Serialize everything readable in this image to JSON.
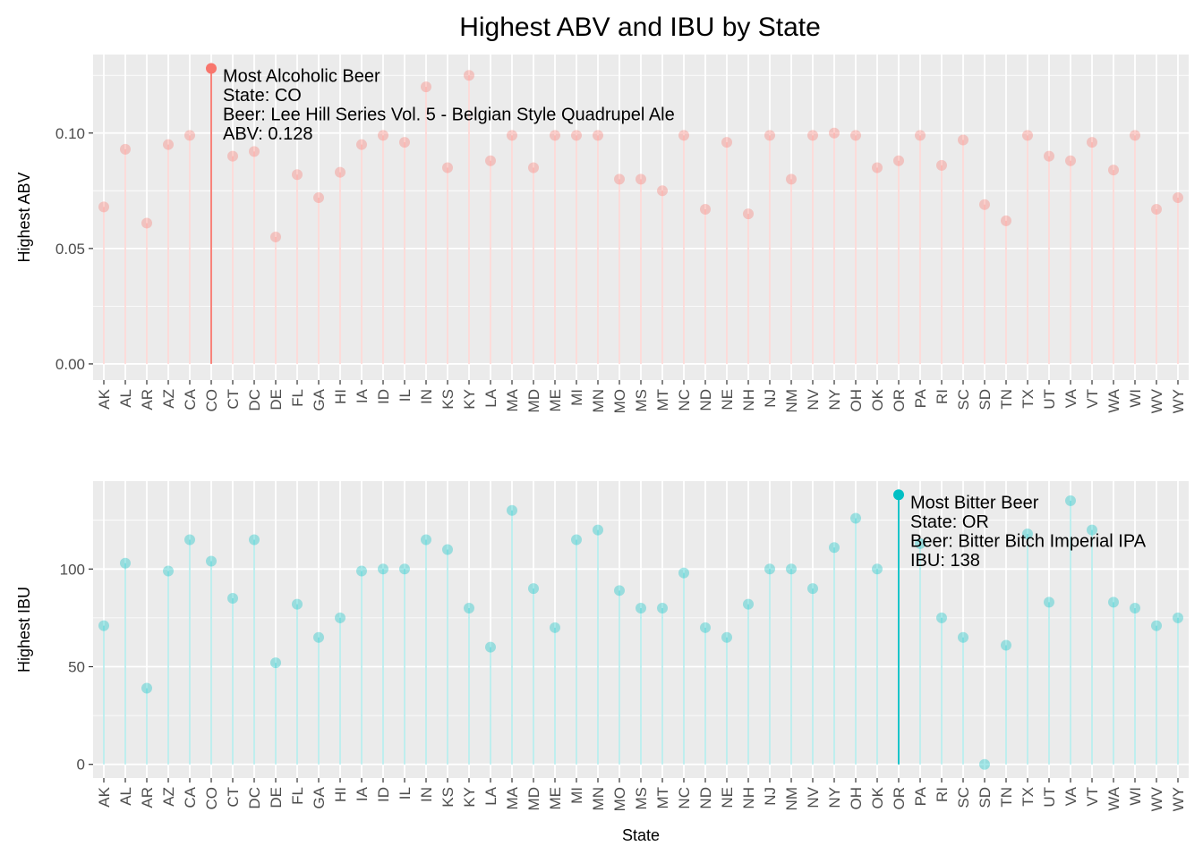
{
  "title": "Highest ABV and IBU by State",
  "chart_data": [
    {
      "type": "lollipop",
      "xlabel": "",
      "ylabel": "Highest ABV",
      "ylim": [
        -0.007,
        0.134
      ],
      "yticks": [
        0.0,
        0.05,
        0.1
      ],
      "ytick_labels": [
        "0.00",
        "0.05",
        "0.10"
      ],
      "grid": true,
      "colors": {
        "point": "#F8766D",
        "panel": "#EBEBEB",
        "grid": "#FFFFFF"
      },
      "categories": [
        "AK",
        "AL",
        "AR",
        "AZ",
        "CA",
        "CO",
        "CT",
        "DC",
        "DE",
        "FL",
        "GA",
        "HI",
        "IA",
        "ID",
        "IL",
        "IN",
        "KS",
        "KY",
        "LA",
        "MA",
        "MD",
        "ME",
        "MI",
        "MN",
        "MO",
        "MS",
        "MT",
        "NC",
        "ND",
        "NE",
        "NH",
        "NJ",
        "NM",
        "NV",
        "NY",
        "OH",
        "OK",
        "OR",
        "PA",
        "RI",
        "SC",
        "SD",
        "TN",
        "TX",
        "UT",
        "VA",
        "VT",
        "WA",
        "WI",
        "WV",
        "WY"
      ],
      "values": [
        0.068,
        0.093,
        0.061,
        0.095,
        0.099,
        0.128,
        0.09,
        0.092,
        0.055,
        0.082,
        0.072,
        0.083,
        0.095,
        0.099,
        0.096,
        0.12,
        0.085,
        0.125,
        0.088,
        0.099,
        0.085,
        0.099,
        0.099,
        0.099,
        0.08,
        0.08,
        0.075,
        0.099,
        0.067,
        0.096,
        0.065,
        0.099,
        0.08,
        0.099,
        0.1,
        0.099,
        0.085,
        0.088,
        0.099,
        0.086,
        0.097,
        0.069,
        0.062,
        0.099,
        0.09,
        0.088,
        0.096,
        0.084,
        0.099,
        0.067,
        0.072
      ],
      "highlight": {
        "category": "CO",
        "lines": [
          "Most Alcoholic Beer",
          "State: CO",
          "Beer: Lee Hill Series Vol. 5 - Belgian Style Quadrupel Ale",
          "ABV: 0.128"
        ]
      }
    },
    {
      "type": "lollipop",
      "xlabel": "State",
      "ylabel": "Highest IBU",
      "ylim": [
        -7,
        145
      ],
      "yticks": [
        0,
        50,
        100
      ],
      "ytick_labels": [
        "0",
        "50",
        "100"
      ],
      "grid": true,
      "colors": {
        "point": "#00BFC4",
        "panel": "#EBEBEB",
        "grid": "#FFFFFF"
      },
      "categories": [
        "AK",
        "AL",
        "AR",
        "AZ",
        "CA",
        "CO",
        "CT",
        "DC",
        "DE",
        "FL",
        "GA",
        "HI",
        "IA",
        "ID",
        "IL",
        "IN",
        "KS",
        "KY",
        "LA",
        "MA",
        "MD",
        "ME",
        "MI",
        "MN",
        "MO",
        "MS",
        "MT",
        "NC",
        "ND",
        "NE",
        "NH",
        "NJ",
        "NM",
        "NV",
        "NY",
        "OH",
        "OK",
        "OR",
        "PA",
        "RI",
        "SC",
        "SD",
        "TN",
        "TX",
        "UT",
        "VA",
        "VT",
        "WA",
        "WI",
        "WV",
        "WY"
      ],
      "values": [
        71,
        103,
        39,
        99,
        115,
        104,
        85,
        115,
        52,
        82,
        65,
        75,
        99,
        100,
        100,
        115,
        110,
        80,
        60,
        130,
        90,
        70,
        115,
        120,
        89,
        80,
        80,
        98,
        70,
        65,
        82,
        100,
        100,
        90,
        111,
        126,
        100,
        138,
        113,
        75,
        65,
        0,
        61,
        118,
        83,
        135,
        120,
        83,
        80,
        71,
        75
      ],
      "highlight": {
        "category": "OR",
        "lines": [
          "Most Bitter Beer",
          "State: OR",
          "Beer: Bitter Bitch Imperial IPA",
          "IBU: 138"
        ]
      }
    }
  ]
}
